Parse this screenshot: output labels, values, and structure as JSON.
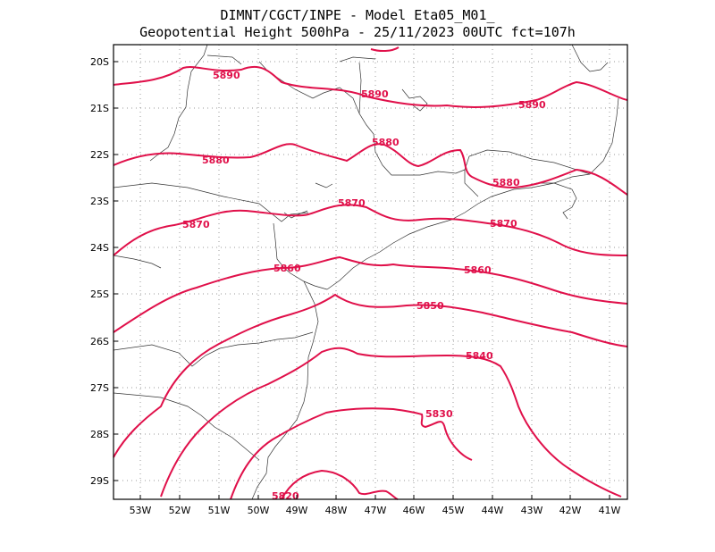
{
  "header": {
    "line1": "DIMNT/CGCT/INPE -  Model Eta05_M01_",
    "line2": "Geopotential Height 500hPa -  25/11/2023 00UTC fct=107h"
  },
  "map": {
    "lat_labels": [
      "20S",
      "21S",
      "22S",
      "23S",
      "24S",
      "25S",
      "26S",
      "27S",
      "28S",
      "29S"
    ],
    "lon_labels": [
      "53W",
      "52W",
      "51W",
      "50W",
      "49W",
      "48W",
      "47W",
      "46W",
      "45W",
      "44W",
      "43W",
      "42W",
      "41W"
    ],
    "contour_color": "#e0104a",
    "contour_labels": [
      {
        "text": "5890"
      },
      {
        "text": "5890"
      },
      {
        "text": "5890"
      },
      {
        "text": "5880"
      },
      {
        "text": "5880"
      },
      {
        "text": "5880"
      },
      {
        "text": "5870"
      },
      {
        "text": "5870"
      },
      {
        "text": "5870"
      },
      {
        "text": "5860"
      },
      {
        "text": "5860"
      },
      {
        "text": "5850"
      },
      {
        "text": "5840"
      },
      {
        "text": "5830"
      },
      {
        "text": "5820"
      }
    ]
  }
}
